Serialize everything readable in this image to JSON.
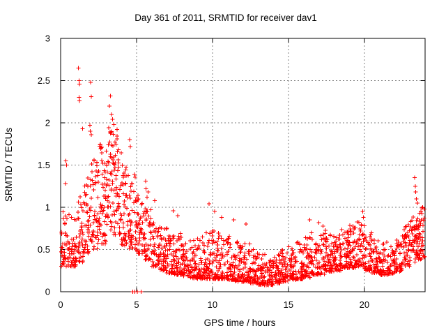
{
  "style": {
    "marker_color": "#ff0000",
    "grid_color": "#808080",
    "axis_color": "#000000",
    "text_color": "#000000",
    "background": "#ffffff"
  },
  "chart_data": {
    "type": "scatter",
    "title": "Day 361 of 2011, SRMTID for receiver dav1",
    "xlabel": "GPS time / hours",
    "ylabel": "SRMTID / TECUs",
    "series_name": "SRMTID",
    "marker": "plus",
    "legend": false,
    "grid": true,
    "xlim": [
      0,
      24
    ],
    "ylim": [
      0,
      3
    ],
    "x_ticks": [
      0,
      5,
      10,
      15,
      20
    ],
    "x_tick_labels": [
      "0",
      "5",
      "10",
      "15",
      "20"
    ],
    "y_ticks": [
      0,
      0.5,
      1,
      1.5,
      2,
      2.5,
      3
    ],
    "y_tick_labels": [
      "0",
      "0.5",
      "1",
      "1.5",
      "2",
      "2.5",
      "3"
    ],
    "distribution_bands_format": [
      "start_hour",
      "y_min_tecu",
      "y_max_tecu",
      "n_points",
      "skew_toward_min"
    ],
    "distribution_bands": [
      [
        0.0,
        0.3,
        0.95,
        42,
        1.7
      ],
      [
        0.5,
        0.3,
        1.0,
        42,
        1.7
      ],
      [
        1.0,
        0.35,
        1.15,
        42,
        1.5
      ],
      [
        1.5,
        0.45,
        1.35,
        44,
        1.4
      ],
      [
        2.0,
        0.5,
        1.6,
        46,
        1.3
      ],
      [
        2.5,
        0.55,
        1.75,
        50,
        1.2
      ],
      [
        3.0,
        0.7,
        2.0,
        52,
        1.1
      ],
      [
        3.5,
        0.65,
        1.95,
        52,
        1.2
      ],
      [
        4.0,
        0.55,
        1.55,
        46,
        1.3
      ],
      [
        4.5,
        0.5,
        1.4,
        44,
        1.4
      ],
      [
        5.0,
        0.45,
        1.15,
        42,
        1.5
      ],
      [
        5.5,
        0.38,
        1.0,
        42,
        1.6
      ],
      [
        6.0,
        0.3,
        0.85,
        42,
        1.7
      ],
      [
        6.5,
        0.25,
        0.78,
        44,
        1.8
      ],
      [
        7.0,
        0.22,
        0.75,
        44,
        1.9
      ],
      [
        7.5,
        0.2,
        0.72,
        44,
        1.9
      ],
      [
        8.0,
        0.18,
        0.65,
        44,
        2.0
      ],
      [
        8.5,
        0.16,
        0.62,
        45,
        2.0
      ],
      [
        9.0,
        0.15,
        0.65,
        45,
        2.0
      ],
      [
        9.5,
        0.15,
        0.75,
        45,
        2.1
      ],
      [
        10.0,
        0.15,
        0.72,
        45,
        2.1
      ],
      [
        10.5,
        0.15,
        0.65,
        45,
        2.1
      ],
      [
        11.0,
        0.14,
        0.68,
        45,
        2.1
      ],
      [
        11.5,
        0.12,
        0.62,
        45,
        2.1
      ],
      [
        12.0,
        0.12,
        0.58,
        45,
        2.1
      ],
      [
        12.5,
        0.1,
        0.5,
        45,
        2.0
      ],
      [
        13.0,
        0.08,
        0.45,
        45,
        2.0
      ],
      [
        13.5,
        0.08,
        0.42,
        45,
        2.0
      ],
      [
        14.0,
        0.1,
        0.45,
        45,
        2.0
      ],
      [
        14.5,
        0.12,
        0.5,
        45,
        2.0
      ],
      [
        15.0,
        0.14,
        0.55,
        45,
        2.0
      ],
      [
        15.5,
        0.15,
        0.6,
        45,
        2.0
      ],
      [
        16.0,
        0.17,
        0.65,
        45,
        1.9
      ],
      [
        16.5,
        0.2,
        0.7,
        45,
        1.9
      ],
      [
        17.0,
        0.2,
        0.78,
        46,
        1.8
      ],
      [
        17.5,
        0.24,
        0.7,
        48,
        1.8
      ],
      [
        18.0,
        0.25,
        0.72,
        48,
        1.7
      ],
      [
        18.5,
        0.28,
        0.75,
        48,
        1.7
      ],
      [
        19.0,
        0.28,
        0.8,
        48,
        1.7
      ],
      [
        19.5,
        0.3,
        0.88,
        46,
        1.6
      ],
      [
        20.0,
        0.25,
        0.7,
        45,
        1.7
      ],
      [
        20.5,
        0.22,
        0.62,
        45,
        1.8
      ],
      [
        21.0,
        0.2,
        0.6,
        44,
        1.8
      ],
      [
        21.5,
        0.2,
        0.55,
        42,
        1.8
      ],
      [
        22.0,
        0.24,
        0.62,
        42,
        1.7
      ],
      [
        22.5,
        0.3,
        0.8,
        45,
        1.5
      ],
      [
        23.0,
        0.35,
        0.9,
        48,
        1.4
      ],
      [
        23.5,
        0.38,
        1.0,
        50,
        1.35
      ]
    ],
    "outlier_points": [
      [
        0.35,
        1.55
      ],
      [
        0.38,
        1.5
      ],
      [
        0.33,
        1.28
      ],
      [
        1.18,
        2.65
      ],
      [
        1.22,
        2.5
      ],
      [
        1.25,
        2.46
      ],
      [
        1.21,
        2.3
      ],
      [
        1.24,
        2.26
      ],
      [
        1.45,
        1.93
      ],
      [
        1.97,
        2.48
      ],
      [
        2.01,
        2.31
      ],
      [
        1.92,
        1.97
      ],
      [
        1.96,
        1.9
      ],
      [
        2.03,
        1.86
      ],
      [
        2.2,
        1.55
      ],
      [
        3.28,
        2.32
      ],
      [
        3.22,
        2.2
      ],
      [
        3.35,
        2.1
      ],
      [
        3.42,
        2.04
      ],
      [
        3.5,
        1.98
      ],
      [
        4.55,
        1.8
      ],
      [
        4.6,
        1.72
      ],
      [
        4.75,
        0.0
      ],
      [
        4.88,
        0.0
      ],
      [
        5.05,
        0.0
      ],
      [
        5.3,
        0.0
      ],
      [
        5.6,
        1.31
      ],
      [
        5.63,
        1.22
      ],
      [
        5.7,
        1.12
      ],
      [
        5.76,
        1.18
      ],
      [
        6.2,
        1.08
      ],
      [
        7.4,
        0.96
      ],
      [
        7.7,
        0.9
      ],
      [
        9.78,
        1.04
      ],
      [
        10.15,
        0.95
      ],
      [
        10.6,
        0.88
      ],
      [
        11.4,
        0.85
      ],
      [
        12.2,
        0.8
      ],
      [
        16.4,
        0.85
      ],
      [
        17.0,
        0.82
      ],
      [
        19.9,
        0.95
      ],
      [
        19.95,
        0.88
      ],
      [
        23.32,
        1.35
      ],
      [
        23.36,
        1.25
      ],
      [
        23.38,
        1.18
      ],
      [
        23.42,
        1.1
      ],
      [
        23.5,
        1.05
      ],
      [
        23.85,
        1.0
      ]
    ]
  }
}
